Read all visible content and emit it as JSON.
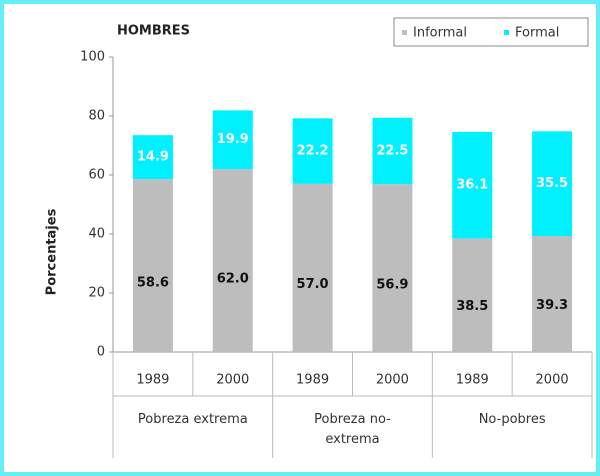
{
  "chart_data": {
    "type": "stacked_bar",
    "title": "HOMBRES",
    "y_label": "Porcentajes",
    "categories": [
      "1989",
      "2000",
      "1989",
      "2000",
      "1989",
      "2000"
    ],
    "groups": [
      "Pobreza extrema",
      "Pobreza no-extrema",
      "No-pobres"
    ],
    "series": [
      {
        "name": "Informal",
        "color": "#bdbdbd",
        "label_color": "#111111",
        "values": [
          58.6,
          62.0,
          57.0,
          56.9,
          38.5,
          39.3
        ],
        "value_labels": [
          "58.6",
          "62.0",
          "57.0",
          "56.9",
          "38.5",
          "39.3"
        ]
      },
      {
        "name": "Formal",
        "color": "#00f0ff",
        "label_color": "#ffffff",
        "values": [
          14.9,
          19.9,
          22.2,
          22.5,
          36.1,
          35.5
        ]
      }
    ],
    "ylim": [
      0,
      100
    ],
    "yticks": [
      0,
      20,
      40,
      60,
      80,
      100
    ],
    "grid": false,
    "legend": "top-right"
  }
}
